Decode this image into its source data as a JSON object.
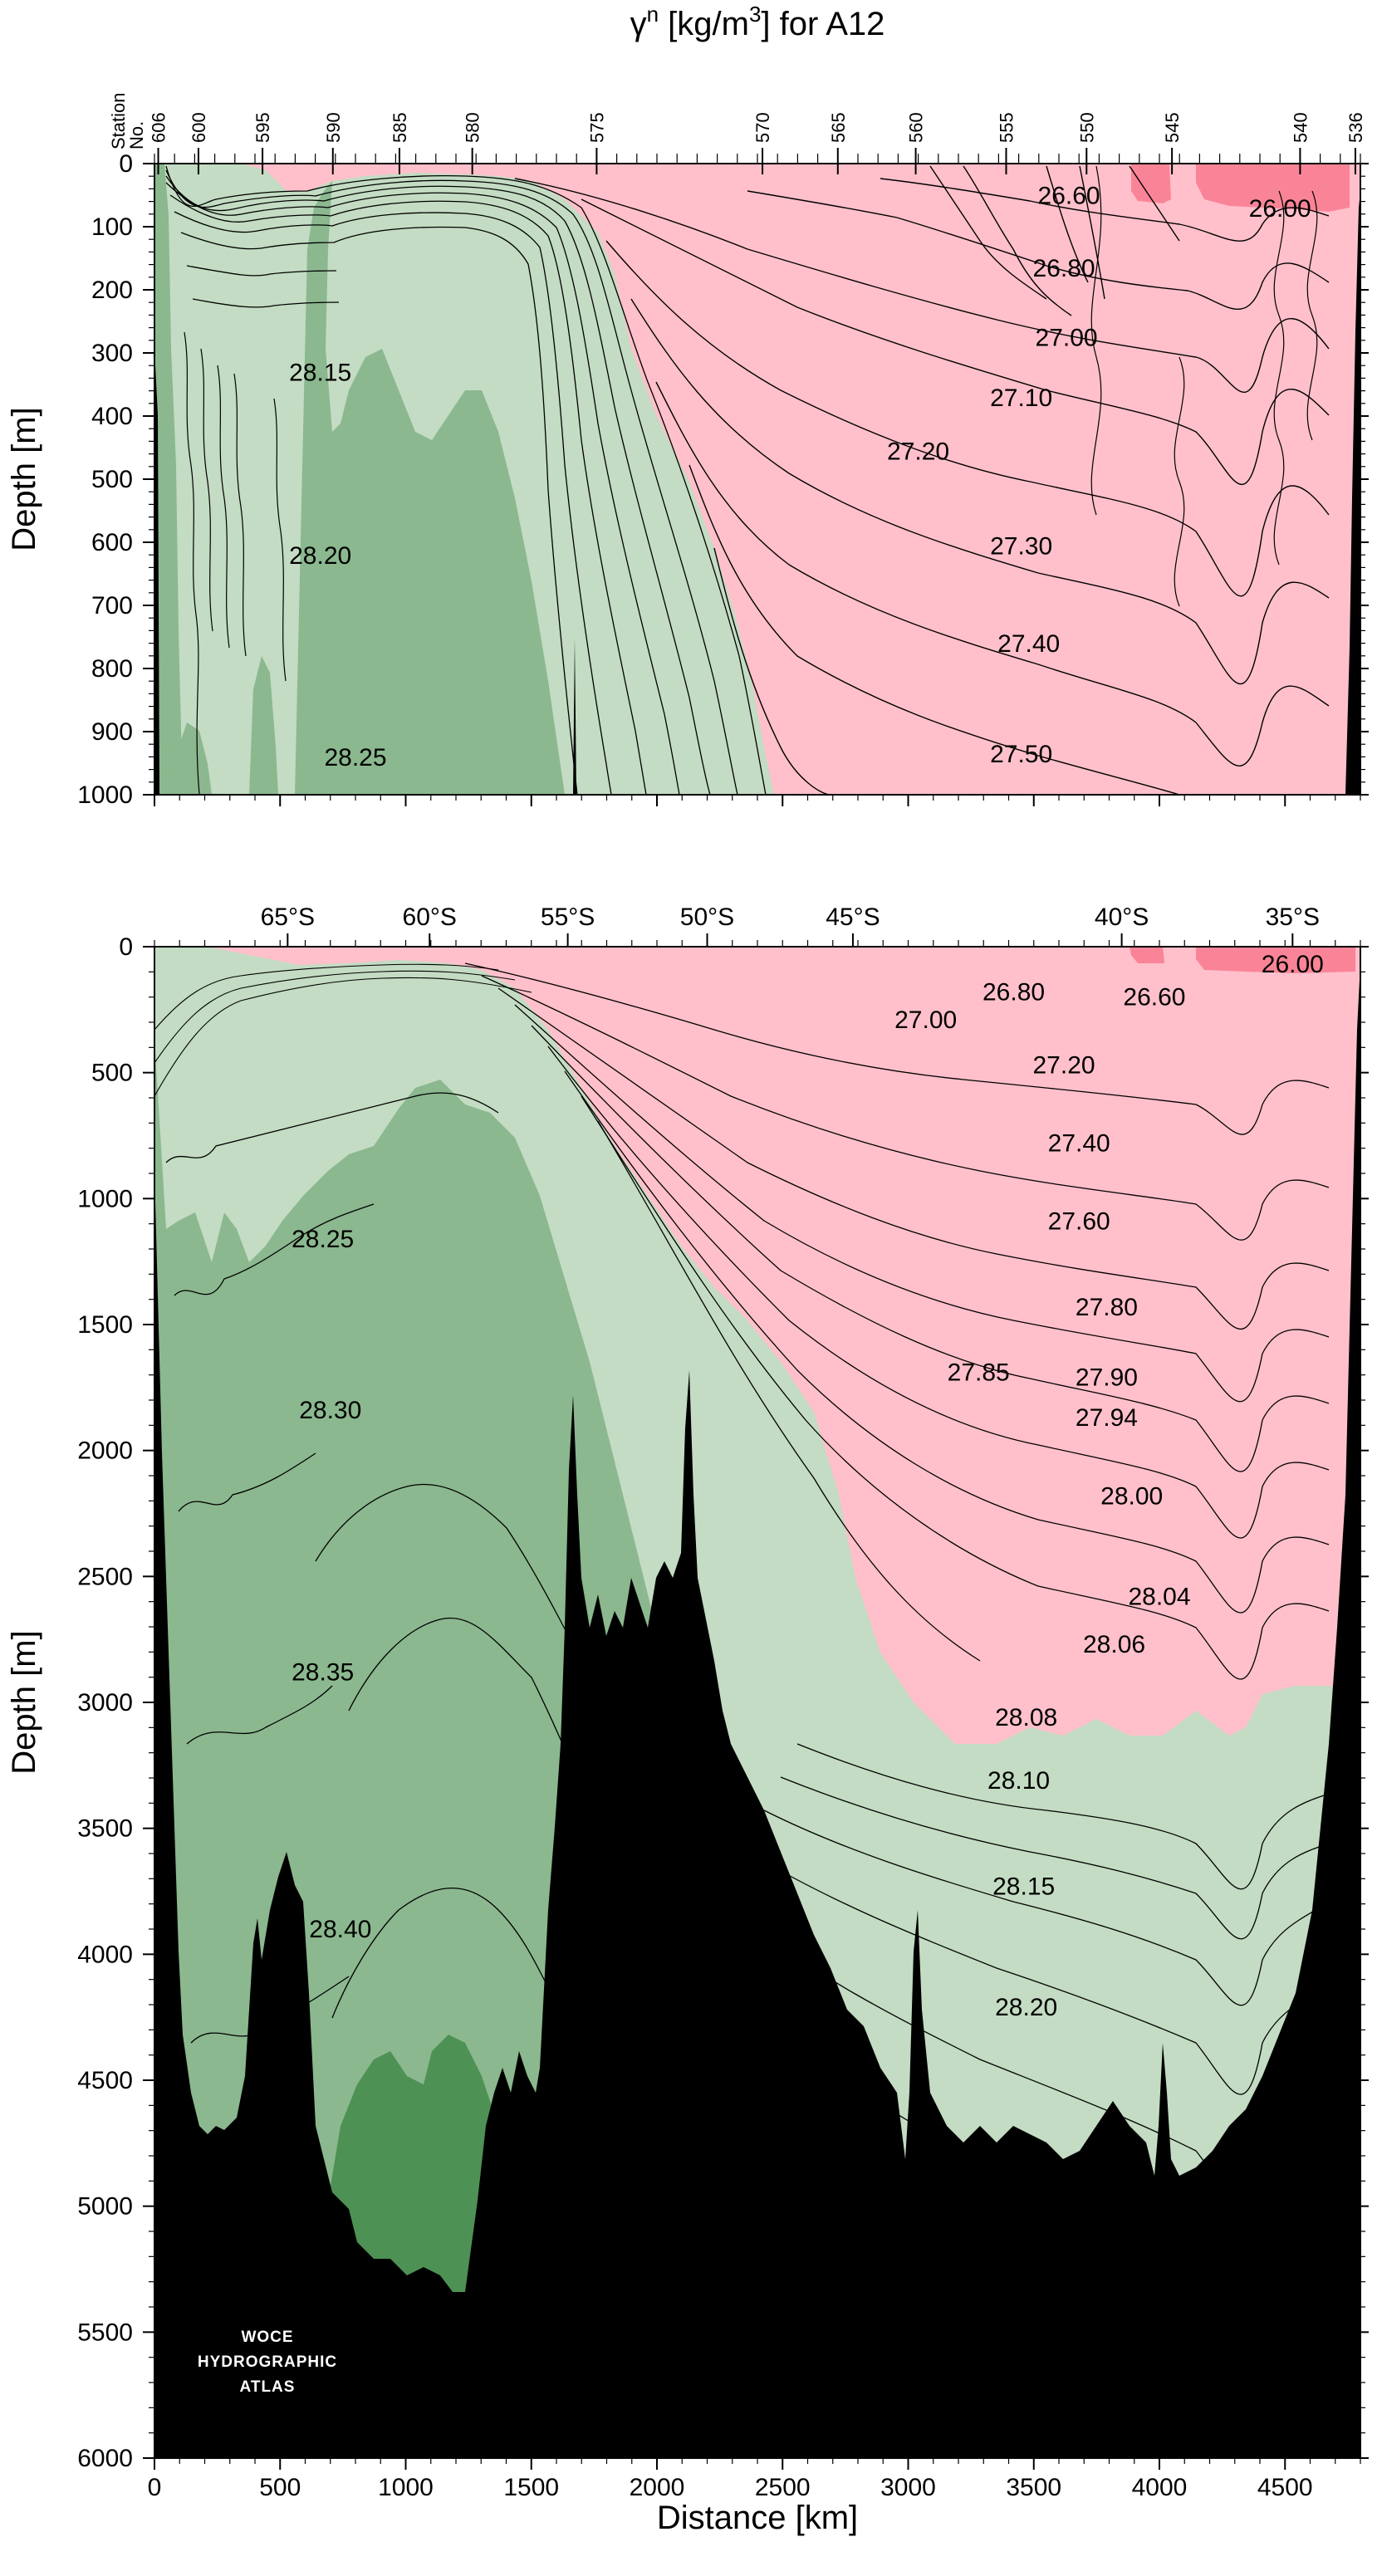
{
  "title": {
    "prefix": "γ",
    "sup1": "n",
    "mid": " [kg/m",
    "sup2": "3",
    "suffix": "] for A12"
  },
  "logo": [
    "WOCE",
    "HYDROGRAPHIC",
    "ATLAS"
  ],
  "colors": {
    "light_pink": "#ffc0cb",
    "dark_pink": "#fa8497",
    "pale_green": "#c3dcc3",
    "mid_green": "#8bb88f",
    "dark_green": "#4e9155",
    "bathymetry": "#000000",
    "contour": "#000000"
  },
  "chart_data": [
    {
      "type": "contour-section",
      "panel": "upper",
      "title": "γn [kg/m3] for A12",
      "ylabel": "Depth [m]",
      "ylim": [
        1000,
        0
      ],
      "xlim": [
        0,
        4800
      ],
      "yticks": [
        0,
        100,
        200,
        300,
        400,
        500,
        600,
        700,
        800,
        900,
        1000
      ],
      "station_axis_label": [
        "Station",
        "No."
      ],
      "stations": [
        {
          "label": "606",
          "km": 15
        },
        {
          "label": "600",
          "km": 175
        },
        {
          "label": "595",
          "km": 430
        },
        {
          "label": "590",
          "km": 710
        },
        {
          "label": "585",
          "km": 975
        },
        {
          "label": "580",
          "km": 1265
        },
        {
          "label": "575",
          "km": 1760
        },
        {
          "label": "570",
          "km": 2420
        },
        {
          "label": "565",
          "km": 2720
        },
        {
          "label": "560",
          "km": 3030
        },
        {
          "label": "555",
          "km": 3390
        },
        {
          "label": "550",
          "km": 3710
        },
        {
          "label": "545",
          "km": 4050
        },
        {
          "label": "540",
          "km": 4560
        },
        {
          "label": "536",
          "km": 4780
        }
      ],
      "contour_labels": [
        {
          "text": "26.60",
          "km": 3640,
          "depth": 60
        },
        {
          "text": "26.00",
          "km": 4480,
          "depth": 80
        },
        {
          "text": "26.80",
          "km": 3620,
          "depth": 175
        },
        {
          "text": "27.00",
          "km": 3630,
          "depth": 285
        },
        {
          "text": "27.10",
          "km": 3450,
          "depth": 380
        },
        {
          "text": "27.20",
          "km": 3040,
          "depth": 465
        },
        {
          "text": "27.30",
          "km": 3450,
          "depth": 615
        },
        {
          "text": "27.40",
          "km": 3480,
          "depth": 770
        },
        {
          "text": "27.50",
          "km": 3450,
          "depth": 945
        },
        {
          "text": "28.15",
          "km": 660,
          "depth": 340
        },
        {
          "text": "28.20",
          "km": 660,
          "depth": 630
        },
        {
          "text": "28.25",
          "km": 800,
          "depth": 950
        }
      ]
    },
    {
      "type": "contour-section",
      "panel": "lower",
      "ylabel": "Depth [m]",
      "xlabel": "Distance [km]",
      "ylim": [
        6000,
        0
      ],
      "xlim": [
        0,
        4800
      ],
      "yticks": [
        0,
        500,
        1000,
        1500,
        2000,
        2500,
        3000,
        3500,
        4000,
        4500,
        5000,
        5500,
        6000
      ],
      "xticks": [
        0,
        500,
        1000,
        1500,
        2000,
        2500,
        3000,
        3500,
        4000,
        4500
      ],
      "latitude_ticks": [
        {
          "label": "65°S",
          "km": 530
        },
        {
          "label": "60°S",
          "km": 1095
        },
        {
          "label": "55°S",
          "km": 1645
        },
        {
          "label": "50°S",
          "km": 2200
        },
        {
          "label": "45°S",
          "km": 2780
        },
        {
          "label": "40°S",
          "km": 3850
        },
        {
          "label": "35°S",
          "km": 4530
        }
      ],
      "contour_labels": [
        {
          "text": "26.00",
          "km": 4530,
          "depth": 70
        },
        {
          "text": "26.80",
          "km": 3420,
          "depth": 180
        },
        {
          "text": "26.60",
          "km": 3980,
          "depth": 200
        },
        {
          "text": "27.00",
          "km": 3070,
          "depth": 290
        },
        {
          "text": "27.20",
          "km": 3620,
          "depth": 470
        },
        {
          "text": "27.40",
          "km": 3680,
          "depth": 780
        },
        {
          "text": "27.60",
          "km": 3680,
          "depth": 1090
        },
        {
          "text": "27.80",
          "km": 3790,
          "depth": 1430
        },
        {
          "text": "27.85",
          "km": 3280,
          "depth": 1690
        },
        {
          "text": "27.90",
          "km": 3790,
          "depth": 1710
        },
        {
          "text": "27.94",
          "km": 3790,
          "depth": 1870
        },
        {
          "text": "28.00",
          "km": 3890,
          "depth": 2180
        },
        {
          "text": "28.04",
          "km": 4000,
          "depth": 2580
        },
        {
          "text": "28.06",
          "km": 3820,
          "depth": 2770
        },
        {
          "text": "28.08",
          "km": 3470,
          "depth": 3060
        },
        {
          "text": "28.10",
          "km": 3440,
          "depth": 3310
        },
        {
          "text": "28.15",
          "km": 3460,
          "depth": 3730
        },
        {
          "text": "28.20",
          "km": 3470,
          "depth": 4210
        },
        {
          "text": "28.25",
          "km": 670,
          "depth": 1160
        },
        {
          "text": "28.30",
          "km": 700,
          "depth": 1840
        },
        {
          "text": "28.35",
          "km": 670,
          "depth": 2880
        },
        {
          "text": "28.40",
          "km": 740,
          "depth": 3900
        }
      ]
    }
  ]
}
